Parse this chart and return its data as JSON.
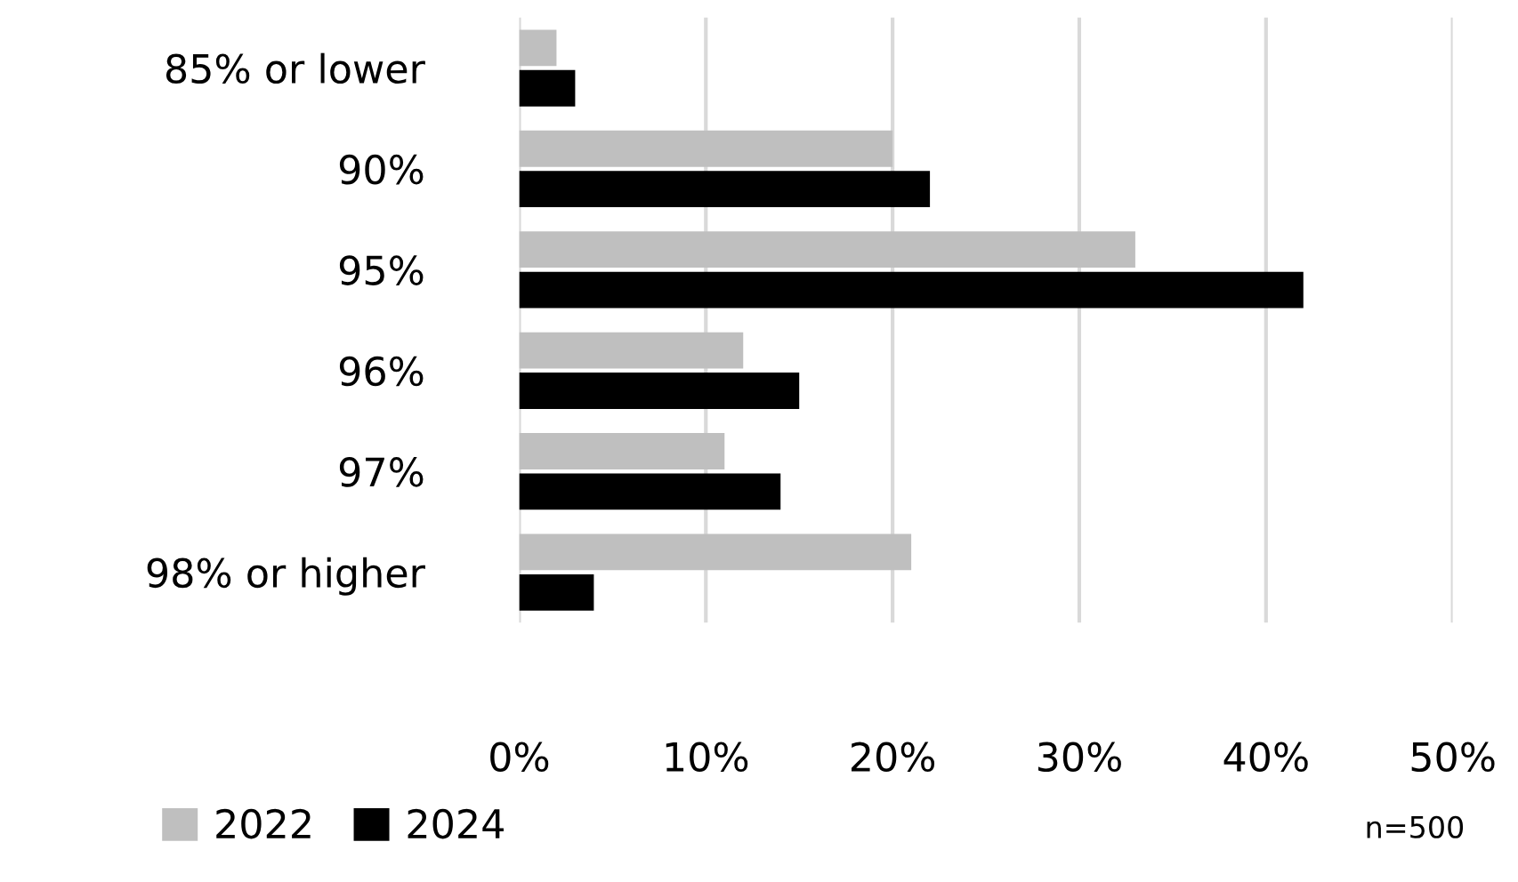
{
  "chart_data": {
    "type": "bar",
    "orientation": "horizontal",
    "categories": [
      "85% or lower",
      "90%",
      "95%",
      "96%",
      "97%",
      "98% or higher"
    ],
    "series": [
      {
        "name": "2022",
        "color": "#bfbfbf",
        "values": [
          2,
          20,
          33,
          12,
          11,
          21
        ]
      },
      {
        "name": "2024",
        "color": "#000000",
        "values": [
          3,
          22,
          42,
          15,
          14,
          4
        ]
      }
    ],
    "xlim": [
      0,
      50
    ],
    "xticks": [
      {
        "value": 0,
        "label": "0%"
      },
      {
        "value": 10,
        "label": "10%"
      },
      {
        "value": 20,
        "label": "20%"
      },
      {
        "value": 30,
        "label": "30%"
      },
      {
        "value": 40,
        "label": "40%"
      },
      {
        "value": 50,
        "label": "50%"
      }
    ],
    "grid": "x",
    "legend": "bottom",
    "annotations": [
      "n=500"
    ]
  }
}
